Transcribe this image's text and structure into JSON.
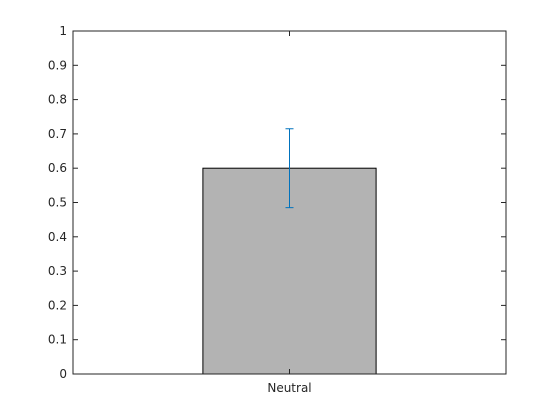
{
  "chart_data": {
    "type": "bar",
    "title": "",
    "xlabel": "",
    "ylabel": "",
    "categories": [
      "Neutral"
    ],
    "values": [
      0.6
    ],
    "error_bars": {
      "lower": [
        0.485
      ],
      "upper": [
        0.715
      ],
      "color": "#0072bd"
    },
    "ylim": [
      0,
      1
    ],
    "yticks": [
      0,
      0.1,
      0.2,
      0.3,
      0.4,
      0.5,
      0.6,
      0.7,
      0.8,
      0.9,
      1
    ],
    "ytick_labels": [
      "0",
      "0.1",
      "0.2",
      "0.3",
      "0.4",
      "0.5",
      "0.6",
      "0.7",
      "0.8",
      "0.9",
      "1"
    ],
    "grid": false,
    "bar_color": "#b3b3b3",
    "bar_edge_color": "#000000",
    "axis_color": "#262626"
  }
}
